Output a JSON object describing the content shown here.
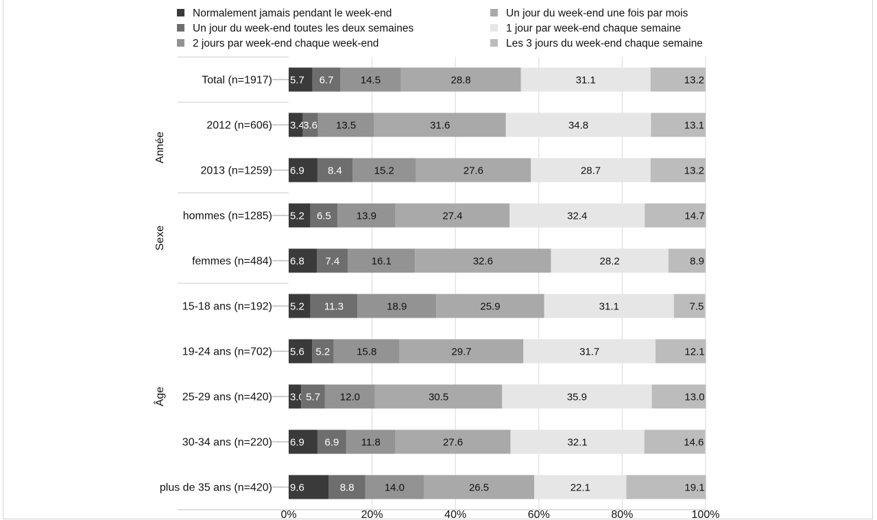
{
  "chart_data": {
    "type": "bar",
    "orientation": "horizontal",
    "stacked": true,
    "categories": [
      "Total (n=1917)",
      "2012 (n=606)",
      "2013 (n=1259)",
      "hommes (n=1285)",
      "femmes (n=484)",
      "15-18 ans (n=192)",
      "19-24 ans (n=702)",
      "25-29 ans (n=420)",
      "30-34 ans (n=220)",
      "plus de 35 ans (n=420)"
    ],
    "groups": [
      {
        "label": "Année",
        "from": 1,
        "to": 2
      },
      {
        "label": "Sexe",
        "from": 3,
        "to": 4
      },
      {
        "label": "Âge",
        "from": 5,
        "to": 9
      }
    ],
    "series": [
      {
        "name": "Normalement jamais pendant le week-end",
        "color": "#3a3a3a",
        "label_color": "#ffffff",
        "values": [
          5.7,
          3.4,
          6.9,
          5.2,
          6.8,
          5.2,
          5.6,
          3.0,
          6.9,
          9.6
        ],
        "labels": [
          "5.7",
          "3.4",
          "6.9",
          "5.2",
          "6.8",
          "5.2",
          "5.6",
          "3.0",
          "6.9",
          "9.6"
        ]
      },
      {
        "name": "Un jour du week-end toutes les deux semaines",
        "color": "#6e6e6e",
        "label_color": "#ffffff",
        "values": [
          6.7,
          3.6,
          8.4,
          6.5,
          7.4,
          11.3,
          5.2,
          5.7,
          6.9,
          8.8
        ],
        "labels": [
          "6.7",
          "3.6",
          "8.4",
          "6.5",
          "7.4",
          "11.3",
          "5.2",
          "5.7",
          "6.9",
          "8.8"
        ]
      },
      {
        "name": "2 jours par week-end chaque week-end",
        "color": "#939393",
        "label_color": "#111111",
        "values": [
          14.5,
          13.5,
          15.2,
          13.9,
          16.1,
          18.9,
          15.8,
          12.0,
          11.8,
          14.0
        ],
        "labels": [
          "14.5",
          "13.5",
          "15.2",
          "13.9",
          "16.1",
          "18.9",
          "15.8",
          "12.0",
          "11.8",
          "14.0"
        ]
      },
      {
        "name": "Un jour du week-end une fois par mois",
        "color": "#a9a9a9",
        "label_color": "#111111",
        "values": [
          28.8,
          31.6,
          27.6,
          27.4,
          32.6,
          25.9,
          29.7,
          30.5,
          27.6,
          26.5
        ],
        "labels": [
          "28.8",
          "31.6",
          "27.6",
          "27.4",
          "32.6",
          "25.9",
          "29.7",
          "30.5",
          "27.6",
          "26.5"
        ]
      },
      {
        "name": "1 jour par week-end chaque semaine",
        "color": "#e6e6e6",
        "label_color": "#111111",
        "values": [
          31.1,
          34.8,
          28.7,
          32.4,
          28.2,
          31.1,
          31.7,
          35.9,
          32.1,
          22.1
        ],
        "labels": [
          "31.1",
          "34.8",
          "28.7",
          "32.4",
          "28.2",
          "31.1",
          "31.7",
          "35.9",
          "32.1",
          "22.1"
        ]
      },
      {
        "name": "Les 3 jours du week-end chaque semaine",
        "color": "#bcbcbc",
        "label_color": "#111111",
        "values": [
          13.2,
          13.1,
          13.2,
          14.7,
          8.9,
          7.5,
          12.1,
          13.0,
          14.6,
          19.1
        ],
        "labels": [
          "13.2",
          "13.1",
          "13.2",
          "14.7",
          "8.9",
          "7.5",
          "12.1",
          "13.0",
          "14.6",
          "19.1"
        ]
      }
    ],
    "x_ticks": [
      "0%",
      "20%",
      "40%",
      "60%",
      "80%",
      "100%"
    ],
    "xlim": [
      0,
      100
    ],
    "grid": true,
    "legend_position": "top",
    "legend_order": [
      0,
      3,
      1,
      4,
      2,
      5
    ],
    "title": "",
    "xlabel": "",
    "ylabel": ""
  }
}
